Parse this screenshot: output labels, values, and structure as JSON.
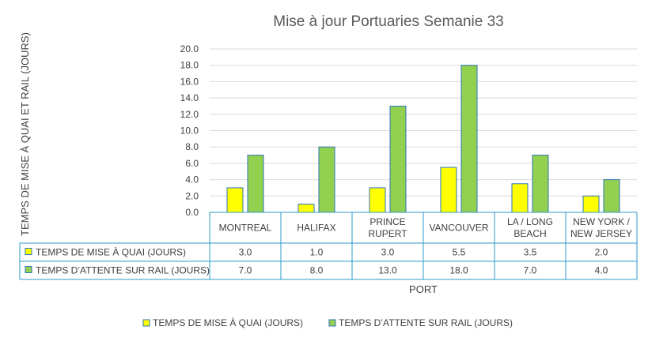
{
  "chart_data": {
    "type": "bar",
    "title": "Mise à jour Portuaries Semanie 33",
    "xlabel": "PORT",
    "ylabel": "TEMPS DE MISE À QUAI ET RAIL (JOURS)",
    "ylim": [
      0,
      20
    ],
    "yticks": [
      "0.0",
      "2.0",
      "4.0",
      "6.0",
      "8.0",
      "10.0",
      "12.0",
      "14.0",
      "16.0",
      "18.0",
      "20.0"
    ],
    "categories": [
      [
        "MONTREAL"
      ],
      [
        "HALIFAX"
      ],
      [
        "PRINCE",
        "RUPERT"
      ],
      [
        "VANCOUVER"
      ],
      [
        "LA / LONG",
        "BEACH"
      ],
      [
        "NEW YORK /",
        "NEW JERSEY"
      ]
    ],
    "series": [
      {
        "name": "TEMPS DE MISE À QUAI (JOURS)",
        "color": "#FFFF00",
        "values": [
          3.0,
          1.0,
          3.0,
          5.5,
          3.5,
          2.0
        ],
        "labels": [
          "3.0",
          "1.0",
          "3.0",
          "5.5",
          "3.5",
          "2.0"
        ]
      },
      {
        "name": "TEMPS  D’ATTENTE SUR RAIL (JOURS)",
        "color": "#92D050",
        "values": [
          7.0,
          8.0,
          13.0,
          18.0,
          7.0,
          4.0
        ],
        "labels": [
          "7.0",
          "8.0",
          "13.0",
          "18.0",
          "7.0",
          "4.0"
        ]
      }
    ],
    "grid": true,
    "legend": "bottom",
    "data_table": true,
    "border_color": "#2E75B6",
    "gridline_color": "#D9D9D9",
    "table_line_color": "#2E9BC8"
  }
}
